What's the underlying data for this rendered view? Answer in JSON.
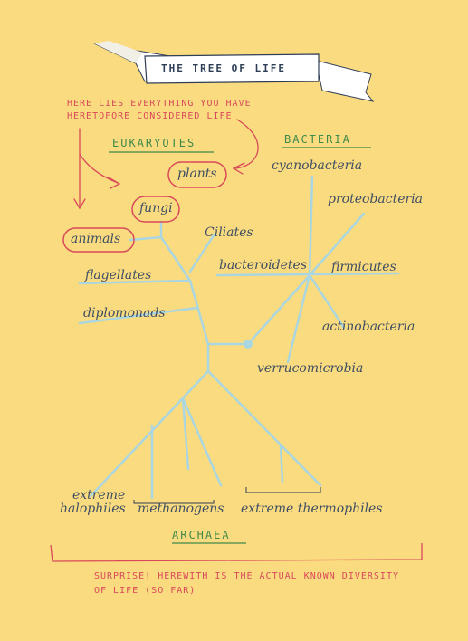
{
  "title": "THE TREE OF LIFE",
  "note_top": [
    "HERE LIES EVERYTHING YOU HAVE",
    "HERETOFORE CONSIDERED LIFE"
  ],
  "groups": {
    "eukaryotes": "EUKARYOTES",
    "bacteria": "BACTERIA",
    "archaea": "ARCHAEA"
  },
  "eukaryote_branches": {
    "plants": "plants",
    "fungi": "fungi",
    "animals": "animals",
    "ciliates": "Ciliates",
    "flagellates": "flagellates",
    "diplomonads": "diplomonads"
  },
  "bacteria_branches": {
    "cyanobacteria": "cyanobacteria",
    "proteobacteria": "proteobacteria",
    "bacteroidetes": "bacteroidetes",
    "firmicutes": "firmicutes",
    "actinobacteria": "actinobacteria",
    "verrucomicrobia": "verrucomicrobia"
  },
  "archaea_branches": {
    "halophiles_line1": "extreme",
    "halophiles_line2": "halophiles",
    "methanogens": "methanogens",
    "thermophiles": "extreme thermophiles"
  },
  "note_bottom": [
    "SURPRISE! HEREWITH IS THE ACTUAL KNOWN DIVERSITY",
    "OF LIFE (SO FAR)"
  ],
  "colors": {
    "background": "#fbdb7f",
    "branch": "#a9d6e0",
    "red_ink": "#d9495a",
    "green_ink": "#3f8a4a",
    "dark_ink": "#3f4f63",
    "banner": "#ffffff"
  }
}
